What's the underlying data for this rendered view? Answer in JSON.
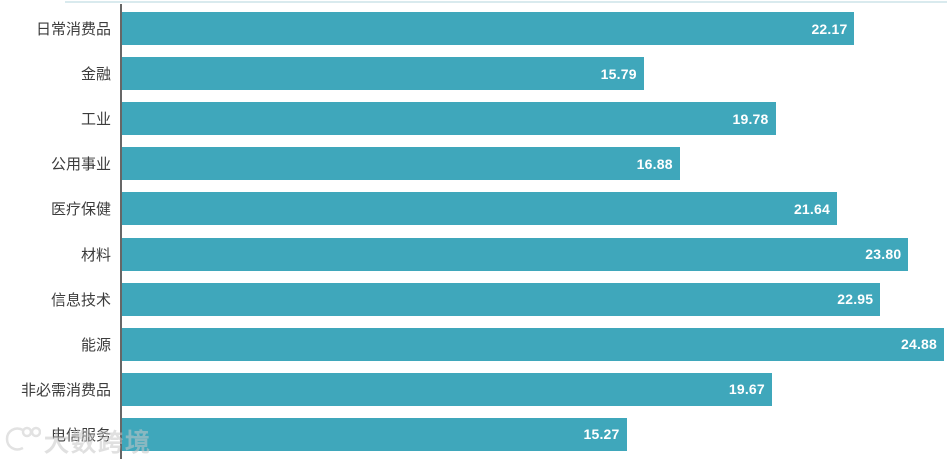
{
  "chart_data": {
    "type": "bar",
    "orientation": "horizontal",
    "title": "",
    "xlabel": "",
    "ylabel": "",
    "categories": [
      "日常消费品",
      "金融",
      "工业",
      "公用事业",
      "医疗保健",
      "材料",
      "信息技术",
      "能源",
      "非必需消费品",
      "电信服务"
    ],
    "values": [
      22.17,
      15.79,
      19.78,
      16.88,
      21.64,
      23.8,
      22.95,
      24.88,
      19.67,
      15.27
    ],
    "value_labels": [
      "22.17",
      "15.79",
      "19.78",
      "16.88",
      "21.64",
      "23.80",
      "22.95",
      "24.88",
      "19.67",
      "15.27"
    ],
    "xlim": [
      0,
      25
    ],
    "grid": false,
    "legend": false,
    "bar_color": "#3fa7bb",
    "value_label_color": "#ffffff",
    "category_label_color": "#3c3c3c",
    "axis_line_color": "#676767"
  },
  "watermark": {
    "text": "大数跨境",
    "color": "#c7c7c7"
  }
}
